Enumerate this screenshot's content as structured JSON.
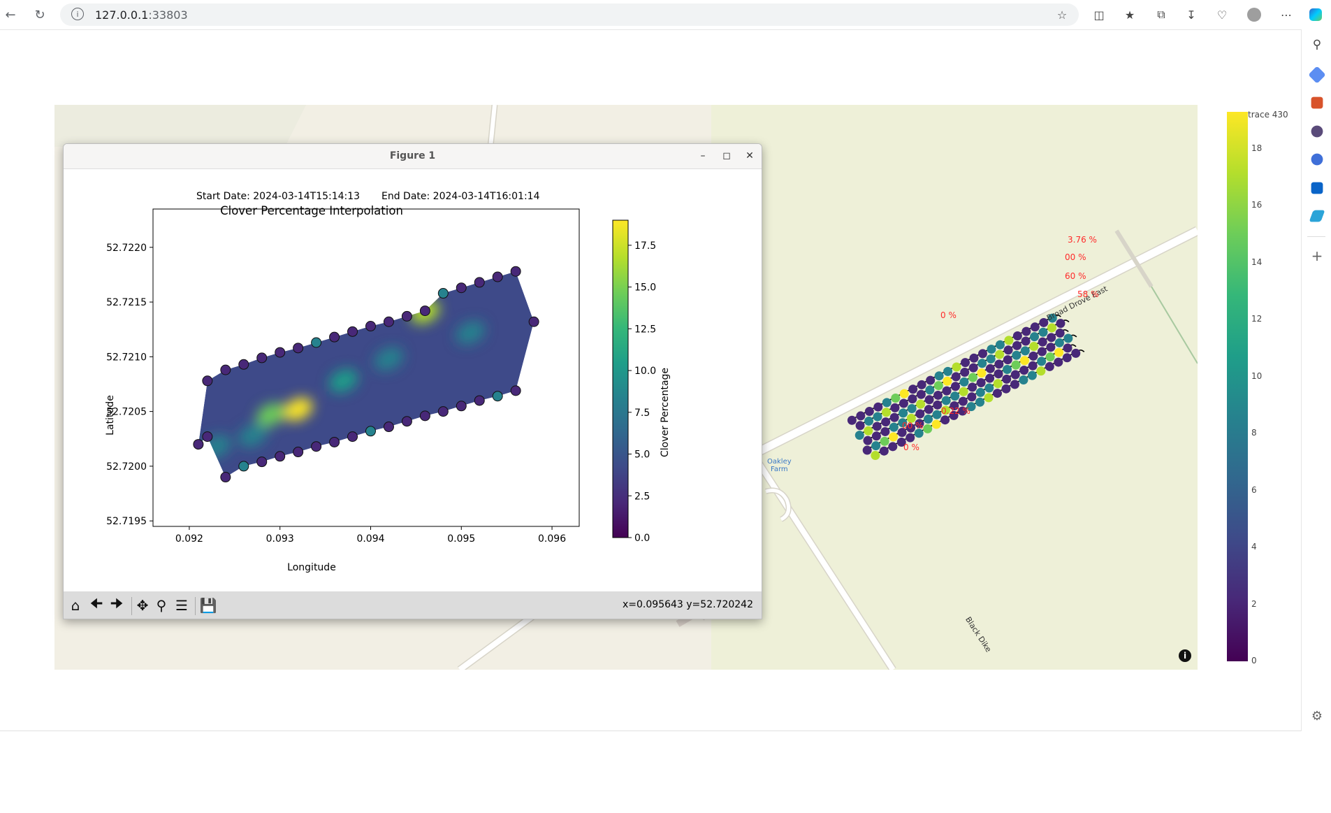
{
  "browser": {
    "url_host": "127.0.0.1",
    "url_port": ":33803"
  },
  "figure_window": {
    "title": "Figure 1",
    "coord_readout": "x=0.095643 y=52.720242"
  },
  "colors": {
    "map_bg": "#f2efe4",
    "road": "#ffffff",
    "label_red": "#ff2a2a",
    "viridis_low": "#440154",
    "viridis_high": "#fde725"
  },
  "map": {
    "labels": {
      "road_broad_drove": "Broad Drove East",
      "road_black_dike": "Black Dike",
      "poi_oakley": "Oakley",
      "poi_farm": "Farm"
    },
    "percent_labels": [
      "3.76 %",
      "00 %",
      "60 %",
      "58 %",
      "0 %",
      "00 %",
      "0.22 %",
      "0 %"
    ],
    "colorbar": {
      "trace_name": "trace 430",
      "ticks": [
        "0",
        "2",
        "4",
        "6",
        "8",
        "10",
        "12",
        "14",
        "16",
        "18"
      ]
    }
  },
  "chart_data": {
    "type": "heatmap",
    "header": {
      "start": "Start Date: 2024-03-14T15:14:13",
      "end": "End Date: 2024-03-14T16:01:14"
    },
    "title": "Clover Percentage Interpolation",
    "xlabel": "Longitude",
    "ylabel": "Latitude",
    "colorbar_label": "Clover Percentage",
    "xlim": [
      0.0916,
      0.0963
    ],
    "ylim": [
      52.71945,
      52.72235
    ],
    "xticks": [
      "0.092",
      "0.093",
      "0.094",
      "0.095",
      "0.096"
    ],
    "yticks": [
      "52.7195",
      "52.7200",
      "52.7205",
      "52.7210",
      "52.7215",
      "52.7220"
    ],
    "clim": [
      0,
      19
    ],
    "cticks": [
      "0.0",
      "2.5",
      "5.0",
      "7.5",
      "10.0",
      "12.5",
      "15.0",
      "17.5"
    ],
    "boundary_points": [
      [
        0.0921,
        52.7202
      ],
      [
        0.0922,
        52.72027
      ],
      [
        0.0924,
        52.7199
      ],
      [
        0.0926,
        52.72
      ],
      [
        0.0928,
        52.72004
      ],
      [
        0.093,
        52.72009
      ],
      [
        0.0932,
        52.72013
      ],
      [
        0.0934,
        52.72018
      ],
      [
        0.0936,
        52.72022
      ],
      [
        0.0938,
        52.72027
      ],
      [
        0.094,
        52.72032
      ],
      [
        0.0942,
        52.72036
      ],
      [
        0.0944,
        52.72041
      ],
      [
        0.0946,
        52.72046
      ],
      [
        0.0948,
        52.7205
      ],
      [
        0.095,
        52.72055
      ],
      [
        0.0952,
        52.7206
      ],
      [
        0.0954,
        52.72064
      ],
      [
        0.0956,
        52.72069
      ],
      [
        0.0958,
        52.72132
      ],
      [
        0.0956,
        52.72178
      ],
      [
        0.0954,
        52.72173
      ],
      [
        0.0952,
        52.72168
      ],
      [
        0.095,
        52.72163
      ],
      [
        0.0948,
        52.72158
      ],
      [
        0.0946,
        52.72142
      ],
      [
        0.0944,
        52.72137
      ],
      [
        0.0942,
        52.72132
      ],
      [
        0.094,
        52.72128
      ],
      [
        0.0938,
        52.72123
      ],
      [
        0.0936,
        52.72118
      ],
      [
        0.0934,
        52.72113
      ],
      [
        0.0932,
        52.72108
      ],
      [
        0.093,
        52.72104
      ],
      [
        0.0928,
        52.72099
      ],
      [
        0.0926,
        52.72093
      ],
      [
        0.0924,
        52.72088
      ],
      [
        0.0922,
        52.72078
      ]
    ],
    "hotspots": [
      {
        "lon": 0.0932,
        "lat": 52.72052,
        "value": 18.5
      },
      {
        "lon": 0.0929,
        "lat": 52.72047,
        "value": 15
      },
      {
        "lon": 0.0946,
        "lat": 52.72141,
        "value": 17
      },
      {
        "lon": 0.0927,
        "lat": 52.72028,
        "value": 9
      },
      {
        "lon": 0.0937,
        "lat": 52.72078,
        "value": 11
      },
      {
        "lon": 0.0951,
        "lat": 52.72122,
        "value": 9
      },
      {
        "lon": 0.0942,
        "lat": 52.72098,
        "value": 8
      },
      {
        "lon": 0.0923,
        "lat": 52.72018,
        "value": 8
      }
    ]
  }
}
